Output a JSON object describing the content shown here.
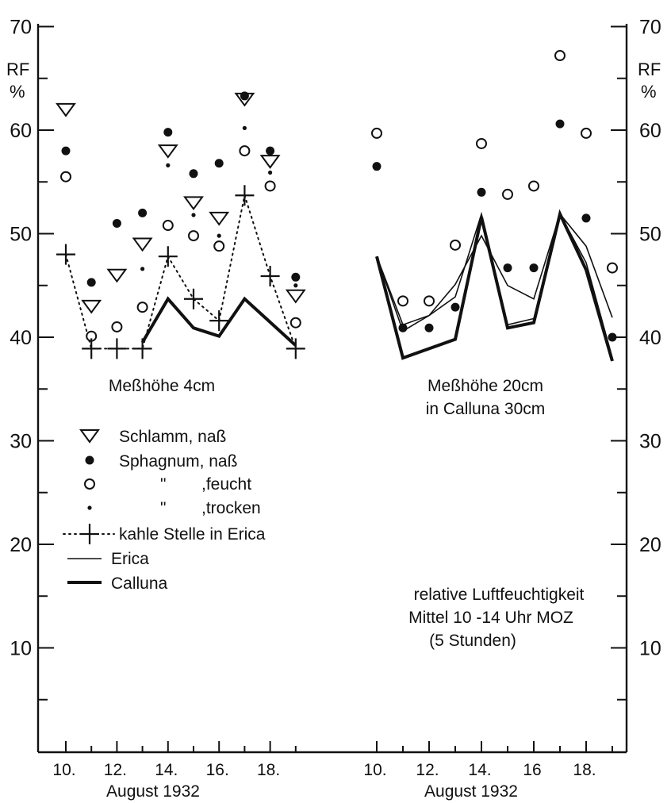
{
  "chart_data": [
    {
      "type": "scatter",
      "panel_title": "Meßhöhe 4cm",
      "ylabel": "RF",
      "yunit": "%",
      "ylim": [
        0,
        70
      ],
      "yticks": [
        10,
        20,
        30,
        40,
        50,
        60,
        70
      ],
      "x_ticks": [
        10,
        12,
        14,
        16,
        18
      ],
      "x_tick_labels": [
        "10.",
        "12.",
        "14.",
        "16.",
        "18."
      ],
      "xlabel": "August 1932",
      "series": [
        {
          "key": "schlamm",
          "marker": "triangle-down",
          "points": [
            [
              10,
              62
            ],
            [
              11,
              43
            ],
            [
              12,
              46
            ],
            [
              13,
              49
            ],
            [
              14,
              58
            ],
            [
              15,
              53
            ],
            [
              16,
              51.5
            ],
            [
              17,
              63
            ],
            [
              18,
              57
            ],
            [
              19,
              44
            ]
          ]
        },
        {
          "key": "sph_nass",
          "marker": "filled-circle",
          "points": [
            [
              10,
              58
            ],
            [
              11,
              45.3
            ],
            [
              12,
              51
            ],
            [
              13,
              52
            ],
            [
              14,
              59.8
            ],
            [
              15,
              55.8
            ],
            [
              16,
              56.8
            ],
            [
              17,
              63.3
            ],
            [
              18,
              58
            ],
            [
              19,
              45.8
            ]
          ]
        },
        {
          "key": "sph_feucht",
          "marker": "open-circle",
          "points": [
            [
              10,
              55.5
            ],
            [
              11,
              40.1
            ],
            [
              12,
              41
            ],
            [
              13,
              42.9
            ],
            [
              14,
              50.8
            ],
            [
              15,
              49.8
            ],
            [
              16,
              48.8
            ],
            [
              17,
              58
            ],
            [
              18,
              54.6
            ],
            [
              19,
              41.4
            ]
          ]
        },
        {
          "key": "sph_trocken",
          "marker": "small-dot",
          "points": [
            [
              13,
              46.6
            ],
            [
              14,
              56.6
            ],
            [
              15,
              51.8
            ],
            [
              16,
              49.8
            ],
            [
              17,
              60.2
            ],
            [
              18,
              55.9
            ],
            [
              19,
              45
            ]
          ]
        },
        {
          "key": "kahle",
          "marker": "plus-dotted",
          "points": [
            [
              10,
              48
            ],
            [
              11,
              38.9
            ],
            [
              12,
              38.9
            ],
            [
              13,
              38.9
            ],
            [
              14,
              47.8
            ],
            [
              15,
              43.7
            ],
            [
              16,
              41.6
            ],
            [
              17,
              53.7
            ],
            [
              18,
              45.9
            ],
            [
              19,
              38.9
            ]
          ]
        },
        {
          "key": "calluna",
          "marker": "thick-line",
          "points": [
            [
              13,
              39.5
            ],
            [
              14,
              43.7
            ],
            [
              15,
              40.9
            ],
            [
              16,
              40.1
            ],
            [
              17,
              43.7
            ],
            [
              19,
              39.2
            ]
          ]
        }
      ]
    },
    {
      "type": "scatter",
      "panel_title_lines": [
        "Meßhöhe 20cm",
        "in Calluna 30cm"
      ],
      "ylabel": "RF",
      "yunit": "%",
      "ylim": [
        0,
        70
      ],
      "yticks": [
        10,
        20,
        30,
        40,
        50,
        60,
        70
      ],
      "x_ticks": [
        10,
        12,
        14,
        16,
        18
      ],
      "x_tick_labels": [
        "10.",
        "12.",
        "14.",
        "16",
        "18."
      ],
      "xlabel": "August 1932",
      "series": [
        {
          "key": "sph_nass",
          "marker": "filled-circle",
          "points": [
            [
              10,
              56.5
            ],
            [
              11,
              40.9
            ],
            [
              12,
              40.9
            ],
            [
              13,
              42.9
            ],
            [
              14,
              54
            ],
            [
              15,
              46.7
            ],
            [
              16,
              46.7
            ],
            [
              17,
              60.6
            ],
            [
              18,
              51.5
            ],
            [
              19,
              40
            ]
          ]
        },
        {
          "key": "sph_feucht",
          "marker": "open-circle",
          "points": [
            [
              10,
              59.7
            ],
            [
              11,
              43.5
            ],
            [
              12,
              43.5
            ],
            [
              13,
              48.9
            ],
            [
              14,
              58.7
            ],
            [
              15,
              53.8
            ],
            [
              16,
              54.6
            ],
            [
              17,
              67.2
            ],
            [
              18,
              59.7
            ],
            [
              19,
              46.7
            ]
          ]
        },
        {
          "key": "erica",
          "marker": "thin-line",
          "points": [
            [
              10,
              47.8
            ],
            [
              11,
              41.2
            ],
            [
              12,
              42.1
            ],
            [
              13,
              45.1
            ],
            [
              14,
              49.8
            ],
            [
              15,
              45
            ],
            [
              16,
              43.7
            ],
            [
              17,
              51.9
            ],
            [
              18,
              48.8
            ],
            [
              19,
              41.9
            ]
          ]
        },
        {
          "key": "erica2",
          "marker": "thin-line",
          "points": [
            [
              10,
              47.8
            ],
            [
              11,
              40.6
            ],
            [
              12,
              42.1
            ],
            [
              13,
              43.9
            ],
            [
              14,
              51.9
            ],
            [
              15,
              41.2
            ],
            [
              16,
              41.8
            ],
            [
              17,
              51.9
            ],
            [
              18,
              47.2
            ],
            [
              19,
              38
            ]
          ]
        },
        {
          "key": "calluna",
          "marker": "thick-line",
          "points": [
            [
              10,
              47.8
            ],
            [
              11,
              38
            ],
            [
              12,
              38.9
            ],
            [
              13,
              39.8
            ],
            [
              14,
              51.6
            ],
            [
              15,
              40.9
            ],
            [
              16,
              41.4
            ],
            [
              17,
              51.9
            ],
            [
              18,
              46.5
            ],
            [
              19,
              37.7
            ]
          ]
        }
      ]
    }
  ],
  "legend": {
    "schlamm": "Schlamm, naß",
    "sph_nass": "Sphagnum, naß",
    "sph_feucht": ",feucht",
    "sph_trocken": ",trocken",
    "ditto": "\"",
    "kahle": "kahle Stelle in Erica",
    "erica": "Erica",
    "calluna": "Calluna"
  },
  "annotation": [
    "relative Luftfeuchtigkeit",
    "Mittel 10 -14 Uhr MOZ",
    "(5 Stunden)"
  ],
  "axis_left_ticks": [
    "10",
    "20",
    "30",
    "40",
    "50",
    "60",
    "70"
  ],
  "axis_right_ticks": [
    "10",
    "20",
    "30",
    "40",
    "50",
    "60",
    "70"
  ],
  "rf_label": "RF",
  "pct_label": "%"
}
